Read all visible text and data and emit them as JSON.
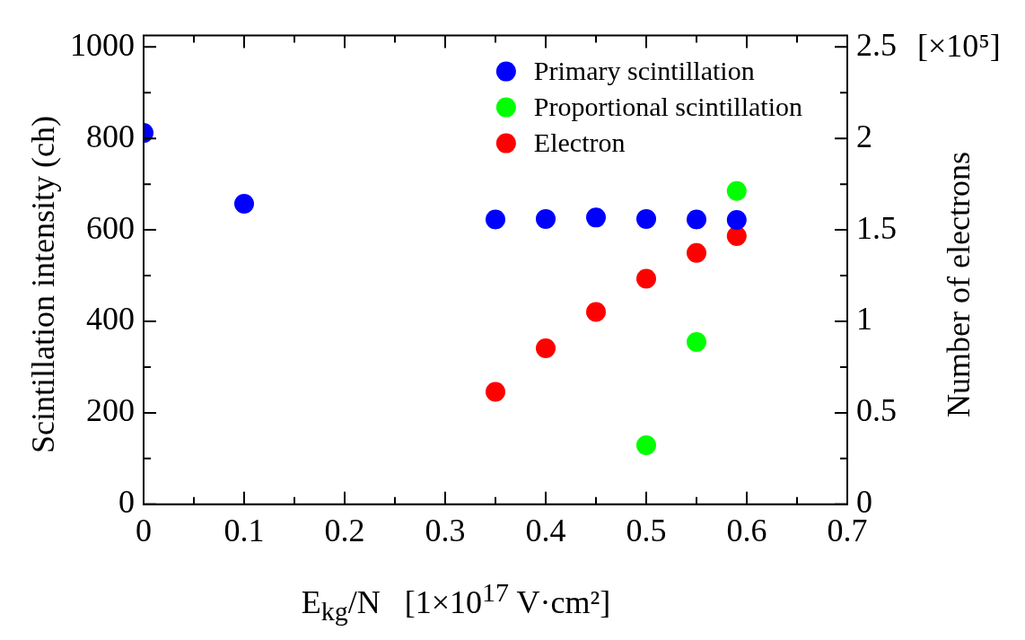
{
  "chart_data": {
    "type": "scatter",
    "xlabel": "E$_{kg}$/N   [1×10$^{17}$ V·cm²]",
    "ylabel": "Scintillation intensity (ch)",
    "y2label": "Number of electrons",
    "annotations": [
      "[×10⁵]"
    ],
    "xlim": [
      0,
      0.7
    ],
    "xticks": [
      0,
      0.1,
      0.2,
      0.3,
      0.4,
      0.5,
      0.6,
      0.7
    ],
    "ylim": [
      0,
      1025
    ],
    "yticks": [
      0,
      200,
      400,
      600,
      800,
      1000
    ],
    "y2lim": [
      0,
      2.5625
    ],
    "y2ticks": [
      0,
      0.5,
      1,
      1.5,
      2,
      2.5
    ],
    "grid": false,
    "legend": "top right",
    "marker": "circle",
    "series": [
      {
        "name": "Primary scintillation",
        "color": "#0000ff",
        "x": [
          0,
          0.1,
          0.35,
          0.4,
          0.45,
          0.5,
          0.55,
          0.59
        ],
        "values": [
          812,
          657,
          623,
          624,
          627,
          624,
          623,
          622
        ]
      },
      {
        "name": "Proportional scintillation",
        "color": "#00ff00",
        "x": [
          0.5,
          0.55,
          0.59
        ],
        "values": [
          129,
          355,
          685
        ]
      },
      {
        "name": "Electron",
        "color": "#ff0000",
        "axis": "y2",
        "x": [
          0.35,
          0.4,
          0.45,
          0.5,
          0.55,
          0.59
        ],
        "values": [
          0.615,
          0.853,
          1.052,
          1.233,
          1.374,
          1.466
        ]
      }
    ]
  }
}
